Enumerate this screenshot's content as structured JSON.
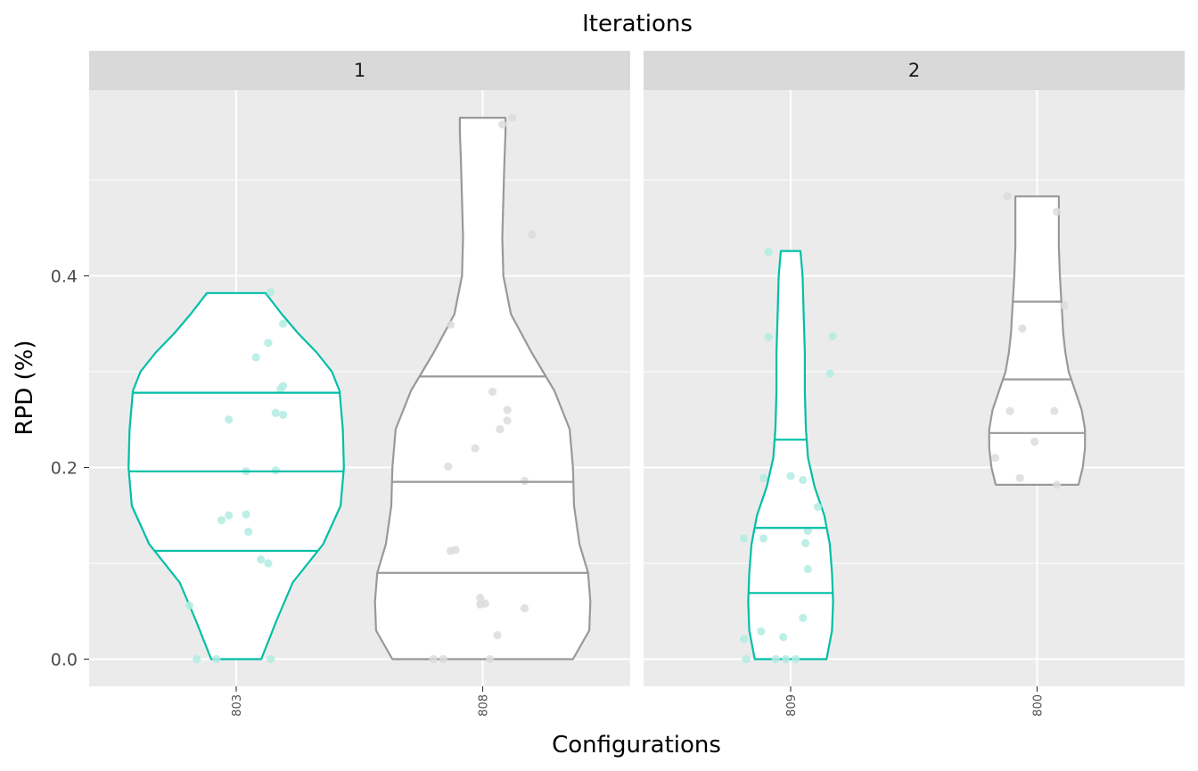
{
  "chart_data": {
    "type": "violin",
    "title": "Iterations",
    "xlabel": "Configurations",
    "ylabel": "RPD (%)",
    "ylim": [
      -0.027,
      0.6
    ],
    "yticks": [
      0.0,
      0.2,
      0.4
    ],
    "ytick_labels": [
      "0.0",
      "0.2",
      "0.4"
    ],
    "grid": true,
    "legend": "none",
    "colors": {
      "highlight": "#00BFA5",
      "default": "#999999",
      "panel_bg": "#EBEBEB",
      "strip_bg": "#D9D9D9",
      "grid": "#FFFFFF",
      "point_highlight": "#b3ece3",
      "point_default": "#dcdcdc"
    },
    "facets": [
      {
        "label": "1",
        "configurations": [
          {
            "name": "803",
            "color": "highlight",
            "quantiles": [
              0.113,
              0.196,
              0.278
            ],
            "range": [
              0.0,
              0.382
            ],
            "profile": [
              [
                0.0,
                0.23
              ],
              [
                0.04,
                0.37
              ],
              [
                0.08,
                0.52
              ],
              [
                0.12,
                0.8
              ],
              [
                0.16,
                0.96
              ],
              [
                0.2,
                0.99
              ],
              [
                0.24,
                0.98
              ],
              [
                0.28,
                0.95
              ],
              [
                0.3,
                0.88
              ],
              [
                0.32,
                0.74
              ],
              [
                0.34,
                0.57
              ],
              [
                0.36,
                0.42
              ],
              [
                0.382,
                0.27
              ]
            ],
            "points": [
              {
                "dx": -0.16,
                "y": 0.0
              },
              {
                "dx": -0.08,
                "y": 0.0
              },
              {
                "dx": 0.14,
                "y": 0.0
              },
              {
                "dx": -0.19,
                "y": 0.056
              },
              {
                "dx": 0.13,
                "y": 0.1
              },
              {
                "dx": 0.1,
                "y": 0.104
              },
              {
                "dx": 0.05,
                "y": 0.133
              },
              {
                "dx": -0.06,
                "y": 0.145
              },
              {
                "dx": -0.03,
                "y": 0.15
              },
              {
                "dx": 0.04,
                "y": 0.151
              },
              {
                "dx": 0.04,
                "y": 0.196
              },
              {
                "dx": 0.16,
                "y": 0.197
              },
              {
                "dx": -0.03,
                "y": 0.25
              },
              {
                "dx": 0.19,
                "y": 0.255
              },
              {
                "dx": 0.16,
                "y": 0.257
              },
              {
                "dx": 0.18,
                "y": 0.282
              },
              {
                "dx": 0.19,
                "y": 0.285
              },
              {
                "dx": 0.08,
                "y": 0.315
              },
              {
                "dx": 0.13,
                "y": 0.33
              },
              {
                "dx": 0.19,
                "y": 0.35
              },
              {
                "dx": 0.14,
                "y": 0.383
              }
            ]
          },
          {
            "name": "808",
            "color": "default",
            "quantiles": [
              0.09,
              0.185,
              0.295
            ],
            "range": [
              0.0,
              0.565
            ],
            "profile": [
              [
                0.0,
                0.83
              ],
              [
                0.03,
                0.98
              ],
              [
                0.06,
                0.99
              ],
              [
                0.09,
                0.97
              ],
              [
                0.12,
                0.89
              ],
              [
                0.16,
                0.84
              ],
              [
                0.2,
                0.83
              ],
              [
                0.24,
                0.8
              ],
              [
                0.28,
                0.66
              ],
              [
                0.32,
                0.45
              ],
              [
                0.36,
                0.26
              ],
              [
                0.4,
                0.19
              ],
              [
                0.44,
                0.18
              ],
              [
                0.48,
                0.19
              ],
              [
                0.52,
                0.2
              ],
              [
                0.55,
                0.21
              ],
              [
                0.565,
                0.21
              ]
            ],
            "points": [
              {
                "dx": -0.2,
                "y": 0.0
              },
              {
                "dx": -0.16,
                "y": 0.0
              },
              {
                "dx": 0.03,
                "y": 0.0
              },
              {
                "dx": 0.06,
                "y": 0.025
              },
              {
                "dx": 0.17,
                "y": 0.053
              },
              {
                "dx": -0.01,
                "y": 0.057
              },
              {
                "dx": 0.01,
                "y": 0.058
              },
              {
                "dx": -0.01,
                "y": 0.064
              },
              {
                "dx": -0.13,
                "y": 0.113
              },
              {
                "dx": -0.11,
                "y": 0.114
              },
              {
                "dx": 0.17,
                "y": 0.186
              },
              {
                "dx": -0.14,
                "y": 0.201
              },
              {
                "dx": -0.03,
                "y": 0.22
              },
              {
                "dx": 0.07,
                "y": 0.24
              },
              {
                "dx": 0.1,
                "y": 0.249
              },
              {
                "dx": 0.1,
                "y": 0.26
              },
              {
                "dx": 0.04,
                "y": 0.279
              },
              {
                "dx": -0.13,
                "y": 0.349
              },
              {
                "dx": 0.2,
                "y": 0.443
              },
              {
                "dx": 0.08,
                "y": 0.558
              },
              {
                "dx": 0.12,
                "y": 0.565
              }
            ]
          }
        ]
      },
      {
        "label": "2",
        "configurations": [
          {
            "name": "809",
            "color": "highlight",
            "quantiles": [
              0.069,
              0.137,
              0.229
            ],
            "range": [
              0.0,
              0.426
            ],
            "profile": [
              [
                0.0,
                0.33
              ],
              [
                0.03,
                0.38
              ],
              [
                0.06,
                0.39
              ],
              [
                0.09,
                0.38
              ],
              [
                0.12,
                0.36
              ],
              [
                0.15,
                0.31
              ],
              [
                0.18,
                0.22
              ],
              [
                0.21,
                0.16
              ],
              [
                0.24,
                0.14
              ],
              [
                0.28,
                0.13
              ],
              [
                0.32,
                0.13
              ],
              [
                0.36,
                0.12
              ],
              [
                0.4,
                0.11
              ],
              [
                0.426,
                0.09
              ]
            ],
            "points": [
              {
                "dx": -0.18,
                "y": 0.0
              },
              {
                "dx": -0.06,
                "y": 0.0
              },
              {
                "dx": -0.02,
                "y": 0.0
              },
              {
                "dx": 0.02,
                "y": 0.0
              },
              {
                "dx": -0.19,
                "y": 0.021
              },
              {
                "dx": -0.12,
                "y": 0.029
              },
              {
                "dx": -0.03,
                "y": 0.023
              },
              {
                "dx": 0.05,
                "y": 0.043
              },
              {
                "dx": 0.07,
                "y": 0.094
              },
              {
                "dx": -0.19,
                "y": 0.126
              },
              {
                "dx": -0.11,
                "y": 0.126
              },
              {
                "dx": 0.06,
                "y": 0.121
              },
              {
                "dx": 0.07,
                "y": 0.134
              },
              {
                "dx": 0.11,
                "y": 0.159
              },
              {
                "dx": -0.11,
                "y": 0.189
              },
              {
                "dx": 0.0,
                "y": 0.191
              },
              {
                "dx": 0.05,
                "y": 0.187
              },
              {
                "dx": 0.16,
                "y": 0.298
              },
              {
                "dx": -0.09,
                "y": 0.336
              },
              {
                "dx": 0.17,
                "y": 0.337
              },
              {
                "dx": -0.09,
                "y": 0.425
              }
            ]
          },
          {
            "name": "800",
            "color": "default",
            "quantiles": [
              0.236,
              0.292,
              0.373
            ],
            "range": [
              0.182,
              0.483
            ],
            "profile": [
              [
                0.182,
                0.38
              ],
              [
                0.2,
                0.42
              ],
              [
                0.22,
                0.44
              ],
              [
                0.24,
                0.44
              ],
              [
                0.26,
                0.41
              ],
              [
                0.28,
                0.35
              ],
              [
                0.3,
                0.29
              ],
              [
                0.32,
                0.26
              ],
              [
                0.34,
                0.24
              ],
              [
                0.36,
                0.23
              ],
              [
                0.38,
                0.22
              ],
              [
                0.4,
                0.21
              ],
              [
                0.43,
                0.2
              ],
              [
                0.46,
                0.2
              ],
              [
                0.483,
                0.2
              ]
            ],
            "points": [
              {
                "dx": 0.08,
                "y": 0.182
              },
              {
                "dx": -0.07,
                "y": 0.189
              },
              {
                "dx": -0.17,
                "y": 0.21
              },
              {
                "dx": -0.01,
                "y": 0.227
              },
              {
                "dx": -0.11,
                "y": 0.259
              },
              {
                "dx": 0.07,
                "y": 0.259
              },
              {
                "dx": -0.06,
                "y": 0.345
              },
              {
                "dx": 0.11,
                "y": 0.369
              },
              {
                "dx": 0.08,
                "y": 0.467
              },
              {
                "dx": -0.12,
                "y": 0.483
              }
            ]
          }
        ]
      }
    ]
  }
}
